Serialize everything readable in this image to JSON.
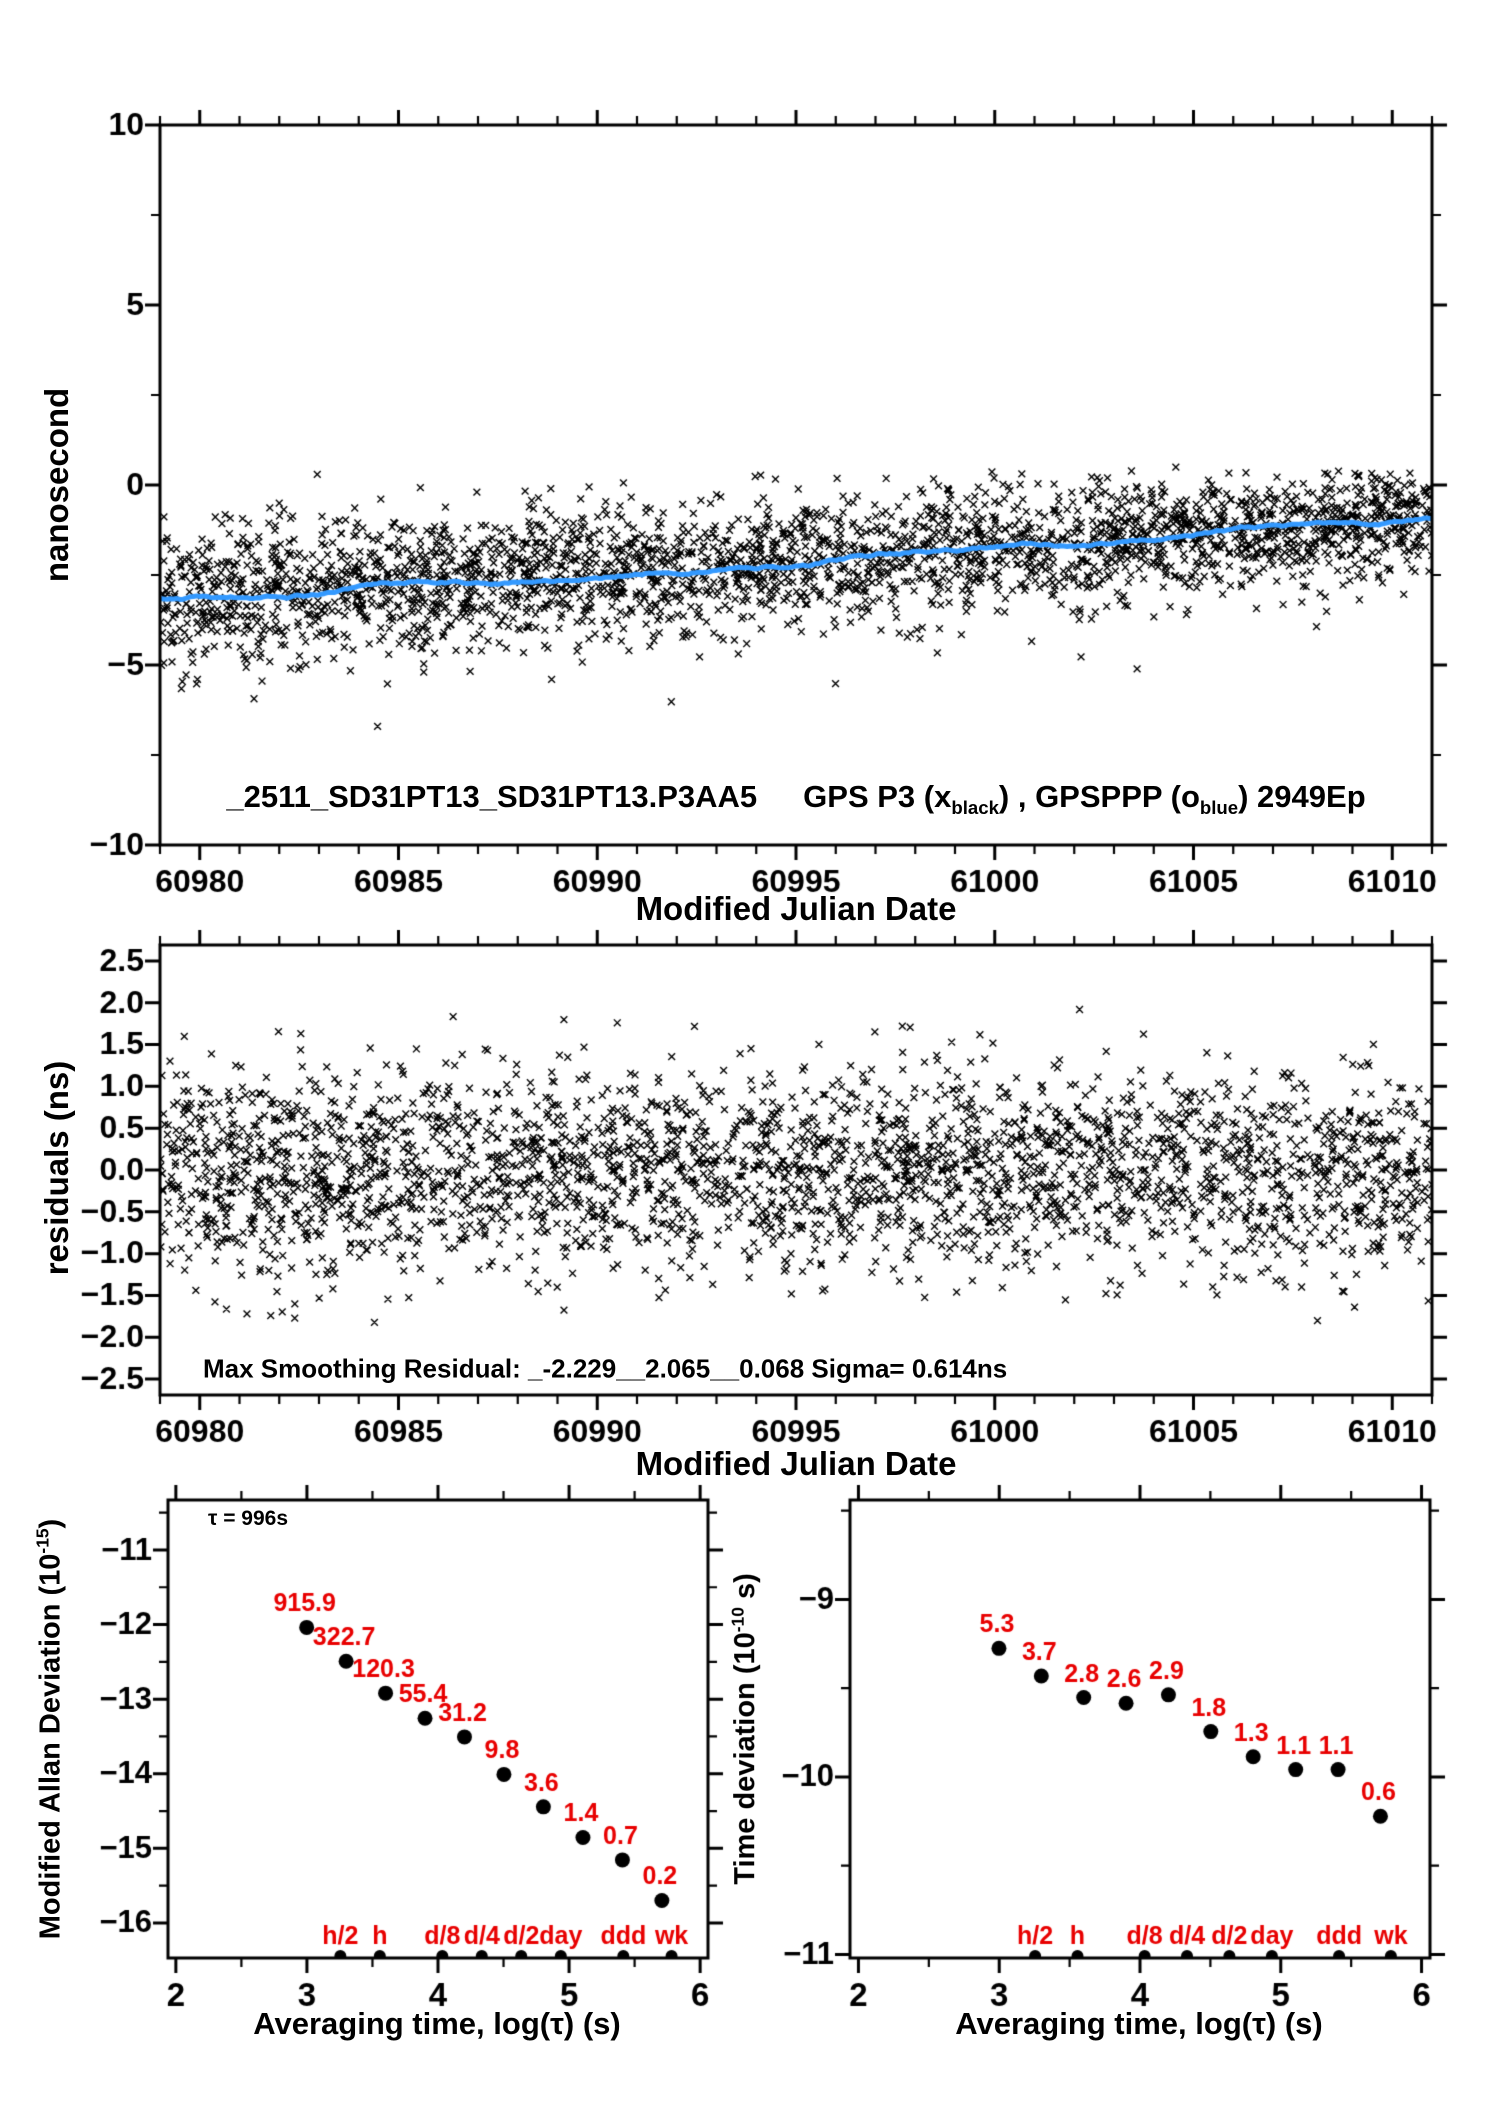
{
  "page": {
    "background": "#ffffff",
    "foreground": "#000000",
    "accent_blue": "#3399ff",
    "accent_red": "#e80000"
  },
  "chart_data": [
    {
      "type": "scatter",
      "name": "gps-p3-vs-mjd",
      "title_parts": {
        "file": "_2511_SD31PT13_SD31PT13.P3AA5",
        "gps_pre": "GPS P3 (x",
        "sub1": "black",
        "mid": ") ,  GPSPPP (o",
        "sub2": "blue",
        "end": ")  2949Ep"
      },
      "xlabel": "Modified Julian Date",
      "ylabel": "nanosecond",
      "xlim": [
        60979,
        61011
      ],
      "ylim": [
        -10,
        10
      ],
      "xticks": [
        60980,
        60985,
        60990,
        60995,
        61000,
        61005,
        61010
      ],
      "yticks": [
        10,
        5,
        0,
        -5,
        -10
      ],
      "x_minor_step": 1,
      "y_minor_step": 2.5,
      "series": [
        {
          "name": "GPS P3 (x black)",
          "marker": "x",
          "color": "#000000",
          "points_count": 2900,
          "trend_start_ns": -3.22,
          "trend_end_ns": -0.93,
          "scatter_sigma_ns_start": 1.05,
          "scatter_sigma_ns_end": 0.78,
          "y_range_ns": [
            -6.8,
            0.55
          ],
          "seed": 1234567
        },
        {
          "name": "GPSPPP (o blue) smoothing",
          "marker": "line",
          "color": "#3399ff",
          "trend_start_ns": -3.22,
          "trend_end_ns": -0.93,
          "wiggle_ns": 0.1,
          "seed": 424242
        }
      ]
    },
    {
      "type": "scatter",
      "name": "residuals-vs-mjd",
      "annotation": "Max Smoothing Residual: _-2.229__2.065__0.068  Sigma= 0.614ns",
      "xlabel": "Modified Julian Date",
      "ylabel": "residuals (ns)",
      "xlim": [
        60979,
        61011
      ],
      "ylim": [
        -2.69,
        2.69
      ],
      "xticks": [
        60980,
        60985,
        60990,
        60995,
        61000,
        61005,
        61010
      ],
      "yticks": [
        2.5,
        2.0,
        1.5,
        1.0,
        0.5,
        0.0,
        -0.5,
        -1.0,
        -1.5,
        -2.0,
        -2.5
      ],
      "x_minor_step": 1,
      "series": [
        {
          "name": "residuals",
          "marker": "x",
          "color": "#000000",
          "points_count": 2900,
          "mean_ns": 0,
          "sigma_ns": 0.614,
          "max_residual_ns": 2.065,
          "min_residual_ns": -2.229,
          "seed": 7654321
        }
      ]
    },
    {
      "type": "scatter",
      "name": "modified-allan-deviation",
      "annotation": "τ = 996s",
      "xlabel": "Averaging time, log(τ) (s)",
      "ylabel_parts": {
        "pre": "Modified Allan Deviation (10",
        "sup": "-15",
        "post": ")"
      },
      "xlim": [
        1.94,
        6.06
      ],
      "ylim": [
        -16.47,
        -10.33
      ],
      "xticks": [
        2,
        3,
        4,
        5,
        6
      ],
      "yticks": [
        -11,
        -12,
        -13,
        -14,
        -15,
        -16
      ],
      "x_minor_step": 0.5,
      "y_minor_step": 0.5,
      "unit_exponent": -15,
      "log_tau": [
        2.998,
        3.299,
        3.6,
        3.901,
        4.202,
        4.503,
        4.804,
        5.106,
        5.407,
        5.708
      ],
      "values": [
        915.9,
        322.7,
        120.3,
        55.4,
        31.2,
        9.8,
        3.6,
        1.4,
        0.7,
        0.2
      ],
      "value_labels": [
        "915.9",
        "322.7",
        "120.3",
        "55.4",
        "31.2",
        "9.8",
        "3.6",
        "1.4",
        "0.7",
        "0.2"
      ],
      "tau_marks": {
        "labels": [
          "h/2",
          "h",
          "d/8",
          "d/4",
          "d/2",
          "day",
          "ddd",
          "wk"
        ],
        "log_tau": [
          3.255,
          3.556,
          4.033,
          4.334,
          4.635,
          4.937,
          5.414,
          5.782
        ]
      }
    },
    {
      "type": "scatter",
      "name": "time-deviation",
      "xlabel": "Averaging time, log(τ) (s)",
      "ylabel_parts": {
        "pre": "Time deviation (10",
        "sup": "-10",
        "post": " s)"
      },
      "xlim": [
        1.94,
        6.06
      ],
      "ylim": [
        -11.02,
        -8.44
      ],
      "xticks": [
        2,
        3,
        4,
        5,
        6
      ],
      "yticks": [
        -9,
        -10,
        -11
      ],
      "x_minor_step": 0.5,
      "y_minor_step": 0.5,
      "unit_exponent": -10,
      "log_tau": [
        2.998,
        3.299,
        3.6,
        3.901,
        4.202,
        4.503,
        4.804,
        5.106,
        5.407,
        5.708
      ],
      "values": [
        5.3,
        3.7,
        2.8,
        2.6,
        2.9,
        1.8,
        1.3,
        1.1,
        1.1,
        0.6
      ],
      "value_labels": [
        "5.3",
        "3.7",
        "2.8",
        "2.6",
        "2.9",
        "1.8",
        "1.3",
        "1.1",
        "1.1",
        "0.6"
      ],
      "tau_marks": {
        "labels": [
          "h/2",
          "h",
          "d/8",
          "d/4",
          "d/2",
          "day",
          "ddd",
          "wk"
        ],
        "log_tau": [
          3.255,
          3.556,
          4.033,
          4.334,
          4.635,
          4.937,
          5.414,
          5.782
        ]
      }
    }
  ]
}
